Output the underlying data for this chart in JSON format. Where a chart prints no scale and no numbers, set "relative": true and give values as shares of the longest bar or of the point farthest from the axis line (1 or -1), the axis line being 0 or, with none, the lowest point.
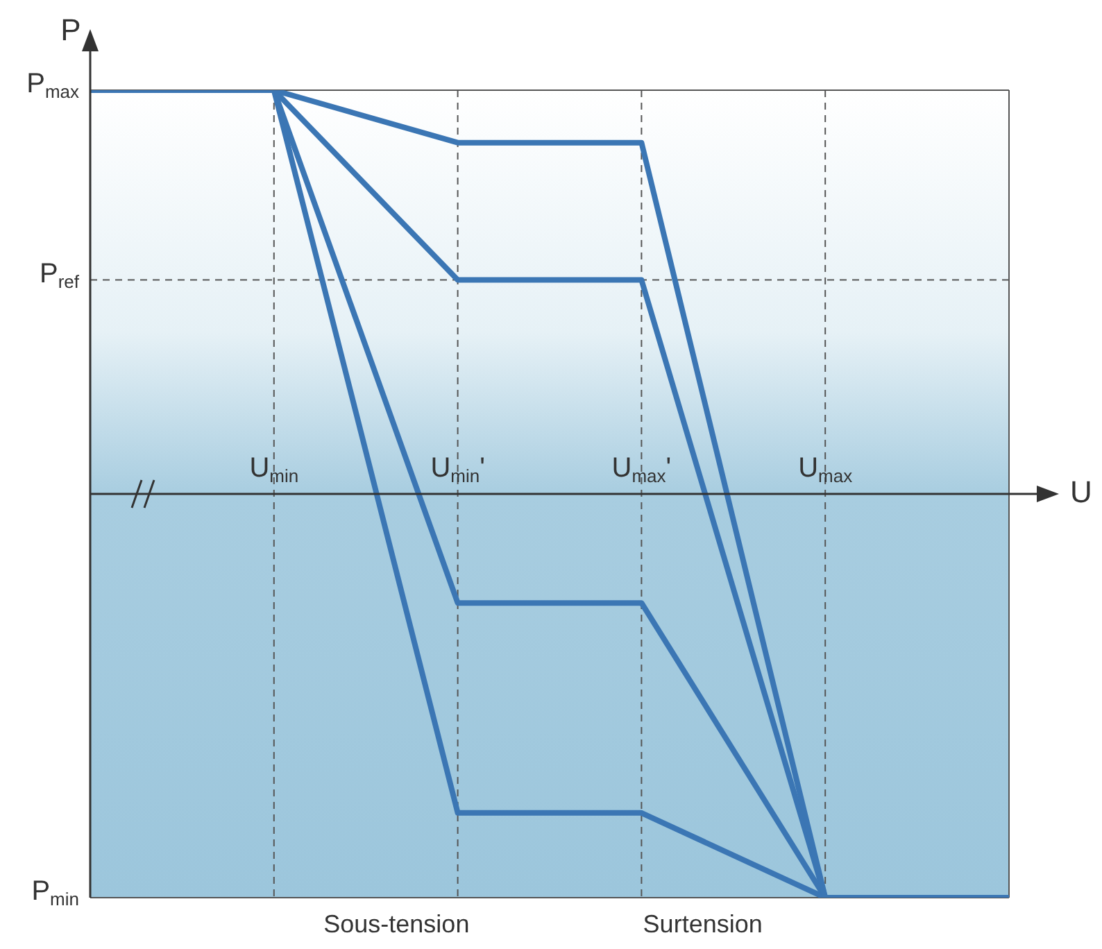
{
  "chart_data": {
    "type": "line",
    "relative": true,
    "xlabel": "U",
    "ylabel": "P",
    "categories": [
      null,
      "U$_{min}$",
      "U$_{min}$'",
      "U$_{max}$'",
      "U$_{max}$",
      null
    ],
    "series": [
      {
        "color": "#3b76b4",
        "values": [
          1,
          1,
          0.87,
          0.87,
          -1,
          -1
        ]
      },
      {
        "color": "#3b76b4",
        "values": [
          1,
          1,
          0.53,
          0.53,
          -1,
          -1
        ]
      },
      {
        "color": "#3b76b4",
        "values": [
          1,
          1,
          -0.27,
          -0.27,
          -1,
          -1
        ]
      },
      {
        "color": "#3b76b4",
        "values": [
          1,
          1,
          -0.79,
          -0.79,
          -1,
          -1
        ]
      }
    ],
    "ref_lines": [
      {
        "axis": "y",
        "value": 1,
        "label": "P$_{max}$",
        "color": "#555555",
        "line_style": "solid"
      },
      {
        "axis": "y",
        "value": 0.53,
        "label": "P$_{ref}$",
        "color": "#555555",
        "line_style": "dashed"
      },
      {
        "axis": "y",
        "value": -1,
        "label": "P$_{min}$",
        "color": "#555555",
        "line_style": "solid"
      }
    ],
    "annotations": [
      "Sous-tension",
      "Surtension"
    ],
    "grid": "x",
    "marker": "none",
    "line_style": "solid"
  }
}
